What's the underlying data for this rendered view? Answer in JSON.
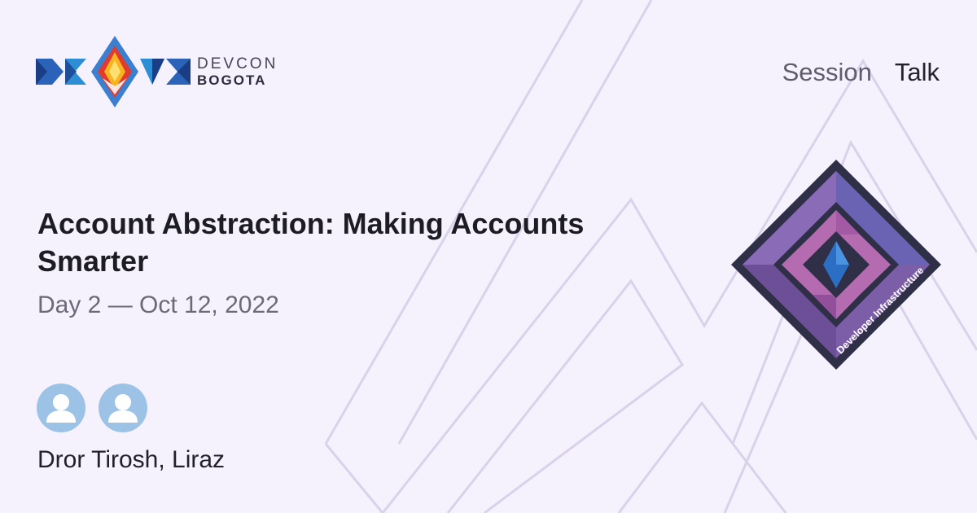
{
  "brand": {
    "line1": "DEVCON",
    "line2": "BOGOTA"
  },
  "nav": {
    "session": "Session",
    "talk": "Talk"
  },
  "talk": {
    "title": "Account Abstraction: Making Accounts Smarter",
    "date": "Day 2 — Oct 12, 2022",
    "speakers": "Dror Tirosh, Liraz"
  },
  "badge": {
    "track": "Developer Infrastructure"
  },
  "colors": {
    "background": "#f5f2fd",
    "line": "#d9d2ea",
    "avatar": "#9cc3e6",
    "badge_dark": "#2f3047",
    "badge_purple": "#7b5ea7",
    "badge_pink": "#b56bb0",
    "badge_blue": "#2b6fc4"
  }
}
